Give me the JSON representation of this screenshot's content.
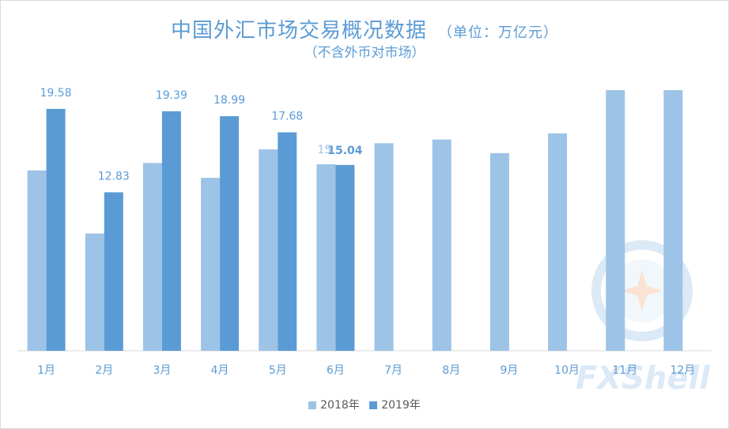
{
  "chart_data": {
    "type": "bar",
    "title": "中国外汇市场交易概况数据",
    "title_unit": "（单位：万亿元）",
    "subtitle": "（不含外币对市场）",
    "categories": [
      "1月",
      "2月",
      "3月",
      "4月",
      "5月",
      "6月",
      "7月",
      "8月",
      "9月",
      "10月",
      "11月",
      "12月"
    ],
    "series": [
      {
        "name": "2018年",
        "color": "#9dc3e6",
        "values": [
          14.6,
          9.5,
          15.2,
          14.0,
          16.3,
          15.1,
          16.8,
          17.1,
          16.0,
          17.6,
          21.1,
          21.1
        ]
      },
      {
        "name": "2019年",
        "color": "#5b9bd5",
        "values": [
          19.58,
          12.83,
          19.39,
          18.99,
          17.68,
          15.04,
          null,
          null,
          null,
          null,
          null,
          null
        ]
      }
    ],
    "data_labels": {
      "2018年": [
        "",
        "",
        "",
        "",
        "",
        "15",
        "",
        "",
        "",
        "",
        "",
        ""
      ],
      "2019年": [
        "19.58",
        "12.83",
        "19.39",
        "18.99",
        "17.68",
        "15.04",
        "",
        "",
        "",
        "",
        "",
        ""
      ]
    },
    "ylim": [
      0,
      22
    ],
    "grid": false,
    "legend": "bottom",
    "watermark": "FXShell"
  }
}
